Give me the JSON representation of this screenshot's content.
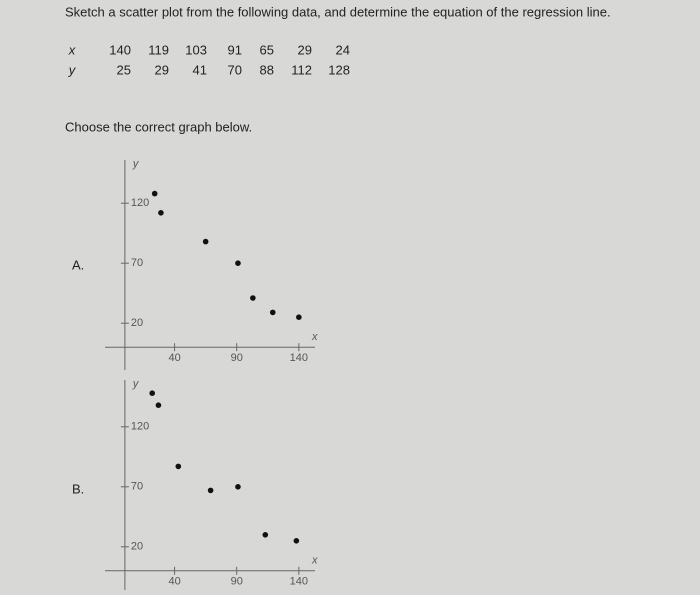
{
  "question": "Sketch a scatter plot from the following data, and determine the equation of the regression line.",
  "table": {
    "rows": [
      [
        "x",
        140,
        119,
        103,
        91,
        65,
        29,
        24
      ],
      [
        "y",
        25,
        29,
        41,
        70,
        88,
        112,
        128
      ]
    ]
  },
  "prompt": "Choose the correct graph below.",
  "options": [
    {
      "label": "A.",
      "chart": {
        "type": "scatter",
        "x_label": "x",
        "y_label": "y",
        "xlim": [
          -16,
          153
        ],
        "ylim": [
          -19,
          156
        ],
        "xticks": [
          40,
          90,
          140
        ],
        "yticks": [
          20,
          70,
          120
        ],
        "x": [
          24,
          29,
          65,
          91,
          103,
          119,
          140
        ],
        "y": [
          128,
          112,
          88,
          70,
          41,
          29,
          25
        ],
        "color": "#111111"
      }
    },
    {
      "label": "B.",
      "chart": {
        "type": "scatter",
        "x_label": "x",
        "y_label": "y",
        "xlim": [
          -16,
          153
        ],
        "ylim": [
          -16,
          159
        ],
        "xticks": [
          40,
          90,
          140
        ],
        "yticks": [
          20,
          70,
          120
        ],
        "x": [
          22,
          27,
          43,
          69,
          91,
          113,
          138
        ],
        "y": [
          148,
          138,
          87,
          67,
          70,
          30,
          25
        ],
        "color": "#111111"
      }
    }
  ]
}
